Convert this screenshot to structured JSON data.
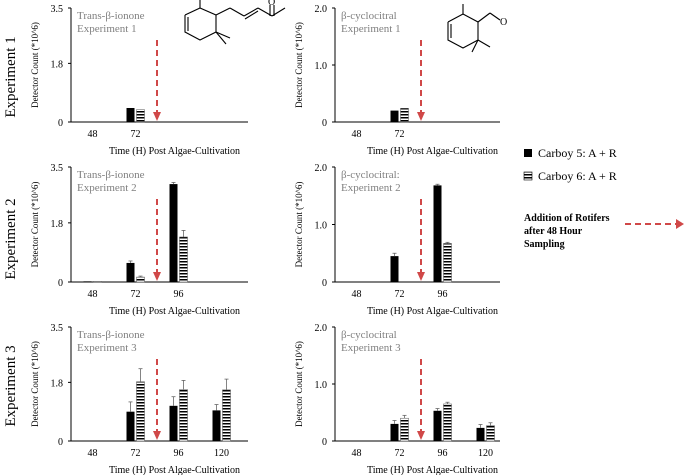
{
  "row_labels": [
    "Experiment 1",
    "Experiment 2",
    "Experiment 3"
  ],
  "legend": {
    "series": [
      {
        "label": "Carboy 5: A + R",
        "pattern": "solid"
      },
      {
        "label": "Carboy 6: A + R",
        "pattern": "striped"
      }
    ],
    "arrow_lines": [
      "Addition of Rotifers",
      "after 48 Hour",
      "Sampling"
    ]
  },
  "colors": {
    "bar_dark": "#000000",
    "arrow": "#d04848",
    "annotation": "#808080",
    "axis": "#000000"
  },
  "molecules": [
    "trans-beta-ionone-structure",
    "beta-cyclocitral-structure"
  ],
  "chart_data": [
    {
      "type": "bar",
      "title": [
        "Trans-β-ionone",
        "Experiment 1"
      ],
      "xlabel": "Time (H) Post Algae-Cultivation",
      "ylabel": "Detector Count (*10^6)",
      "yticks": [
        0,
        1.8,
        3.5
      ],
      "ylim": [
        0,
        3.5
      ],
      "categories": [
        "48",
        "72"
      ],
      "slots": 2,
      "series": [
        {
          "name": "Carboy 5: A + R",
          "values": [
            0,
            0.43
          ],
          "errors": [
            0,
            0
          ]
        },
        {
          "name": "Carboy 6: A + R",
          "values": [
            0,
            0.38
          ],
          "errors": [
            0,
            0
          ]
        }
      ],
      "arrow_at": 1.5
    },
    {
      "type": "bar",
      "title": [
        "β-cyclocitral",
        "Experiment 1"
      ],
      "xlabel": "Time (H) Post Algae-Cultivation",
      "ylabel": "Detector Count (*10^6)",
      "yticks": [
        0,
        1.0,
        2.0
      ],
      "ylim": [
        0,
        2.0
      ],
      "categories": [
        "48",
        "72"
      ],
      "slots": 2,
      "series": [
        {
          "name": "Carboy 5: A + R",
          "values": [
            0,
            0.2
          ],
          "errors": [
            0,
            0
          ]
        },
        {
          "name": "Carboy 6: A + R",
          "values": [
            0,
            0.24
          ],
          "errors": [
            0,
            0
          ]
        }
      ],
      "arrow_at": 1.5
    },
    {
      "type": "bar",
      "title": [
        "Trans-β-ionone",
        "Experiment 2"
      ],
      "xlabel": "Time (H) Post Algae-Cultivation",
      "ylabel": "Detector Count (*10^6)",
      "yticks": [
        0,
        1.8,
        3.5
      ],
      "ylim": [
        0,
        3.5
      ],
      "categories": [
        "48",
        "72",
        "96"
      ],
      "slots": 4,
      "series": [
        {
          "name": "Carboy 5: A + R",
          "values": [
            0.02,
            0.58,
            2.98
          ],
          "errors": [
            0,
            0.06,
            0.05
          ]
        },
        {
          "name": "Carboy 6: A + R",
          "values": [
            0.02,
            0.15,
            1.37
          ],
          "errors": [
            0,
            0.03,
            0.2
          ]
        }
      ],
      "arrow_at": 1.5
    },
    {
      "type": "bar",
      "title": [
        "β-cyclocitral:",
        "Experiment 2"
      ],
      "xlabel": "Time (H) Post Algae-Cultivation",
      "ylabel": "Detector Count (*10^6)",
      "yticks": [
        0,
        1.0,
        2.0
      ],
      "ylim": [
        0,
        2.0
      ],
      "categories": [
        "48",
        "72",
        "96"
      ],
      "slots": 4,
      "series": [
        {
          "name": "Carboy 5: A + R",
          "values": [
            0,
            0.45,
            1.68
          ],
          "errors": [
            0,
            0.05,
            0.02
          ]
        },
        {
          "name": "Carboy 6: A + R",
          "values": [
            0,
            0,
            0.67
          ],
          "errors": [
            0,
            0,
            0.02
          ]
        }
      ],
      "arrow_at": 1.5
    },
    {
      "type": "bar",
      "title": [
        "Trans-β-ionone",
        "Experiment 3"
      ],
      "xlabel": "Time (H) Post Algae-Cultivation",
      "ylabel": "Detector Count (*10^6)",
      "yticks": [
        0,
        1.8,
        3.5
      ],
      "ylim": [
        0,
        3.5
      ],
      "categories": [
        "48",
        "72",
        "96",
        "120"
      ],
      "slots": 4,
      "series": [
        {
          "name": "Carboy 5: A + R",
          "values": [
            0,
            0.9,
            1.08,
            0.94
          ],
          "errors": [
            0,
            0.3,
            0.28,
            0.18
          ]
        },
        {
          "name": "Carboy 6: A + R",
          "values": [
            0,
            1.82,
            1.58,
            1.57
          ],
          "errors": [
            0,
            0.4,
            0.28,
            0.33
          ]
        }
      ],
      "arrow_at": 1.5
    },
    {
      "type": "bar",
      "title": [
        "β-cyclocitral",
        "Experiment 3"
      ],
      "xlabel": "Time (H) Post Algae-Cultivation",
      "ylabel": "Detector Count (*10^6)",
      "yticks": [
        0,
        1.0,
        2.0
      ],
      "ylim": [
        0,
        2.0
      ],
      "categories": [
        "48",
        "72",
        "96",
        "120"
      ],
      "slots": 4,
      "series": [
        {
          "name": "Carboy 5: A + R",
          "values": [
            0,
            0.3,
            0.53,
            0.23
          ],
          "errors": [
            0,
            0.06,
            0.04,
            0.06
          ]
        },
        {
          "name": "Carboy 6: A + R",
          "values": [
            0,
            0.4,
            0.65,
            0.27
          ],
          "errors": [
            0,
            0.05,
            0.03,
            0.05
          ]
        }
      ],
      "arrow_at": 1.5
    }
  ]
}
